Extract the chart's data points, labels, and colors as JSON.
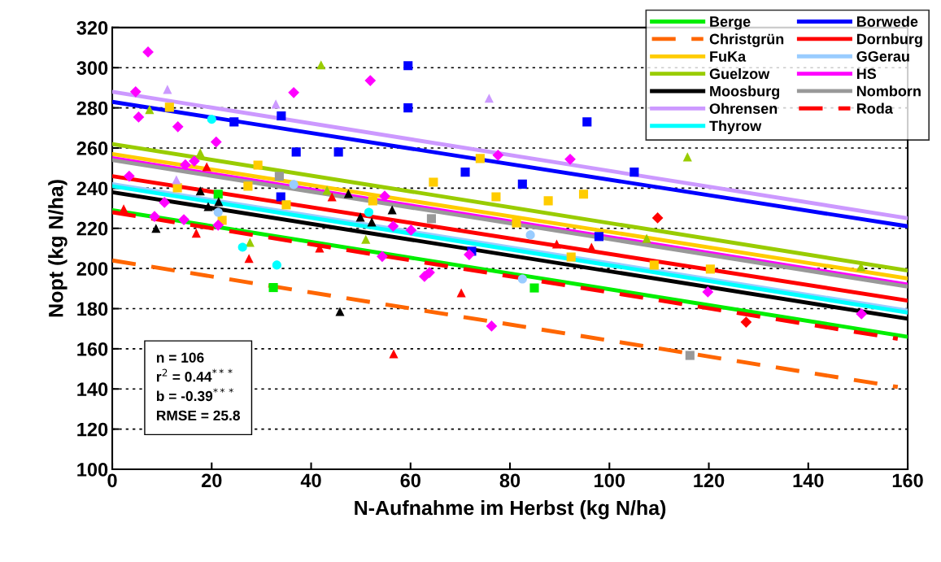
{
  "chart_data": {
    "type": "scatter",
    "xlabel": "N-Aufnahme im Herbst (kg N/ha)",
    "ylabel": "Nopt (kg N/ha)",
    "xlim": [
      0,
      160
    ],
    "xticks": [
      0,
      20,
      40,
      60,
      80,
      100,
      120,
      140,
      160
    ],
    "ylim": [
      100,
      320
    ],
    "yticks": [
      100,
      120,
      140,
      160,
      180,
      200,
      220,
      240,
      260,
      280,
      300,
      320
    ],
    "grid": "y",
    "legend": "top right",
    "annotations": [
      "n = 106",
      "r$^{2}$ = 0.44$^{***}$",
      "b = -0.39$^{***}$",
      "RMSE = 25.8"
    ],
    "series": [
      {
        "color": "#00ee00",
        "marker": "square",
        "x": [
          21.3,
          32.4,
          84.9
        ],
        "values": [
          237,
          190.5,
          190.3
        ]
      },
      {
        "color": "#0000ff",
        "marker": "square",
        "x": [
          24.5,
          33.9,
          34,
          37,
          45.5,
          59.5,
          59.5,
          71,
          72.3,
          82.5,
          95.5,
          97.9,
          105
        ],
        "values": [
          273,
          235.7,
          276,
          258,
          258,
          301,
          280,
          248,
          208.6,
          242,
          273,
          215.9,
          248
        ]
      },
      {
        "color": "#ffcc00",
        "marker": "square",
        "x": [
          11.5,
          13.1,
          22.1,
          27.3,
          29.3,
          35,
          52.4,
          64.6,
          74,
          77.2,
          81.3,
          87.7,
          92.3,
          94.8,
          109,
          120.3
        ],
        "values": [
          280.3,
          240.2,
          224,
          241,
          251.5,
          231.7,
          233.7,
          243,
          254.8,
          235.7,
          222.7,
          233.7,
          205.7,
          237,
          201.7,
          199.7
        ]
      },
      {
        "color": "#99ccff",
        "marker": "circle",
        "x": [
          21.3,
          36.5,
          82.5,
          84.1
        ],
        "values": [
          228,
          241.8,
          194.8,
          216.7
        ]
      },
      {
        "color": "#99cc00",
        "marker": "triangle",
        "x": [
          7.5,
          17.7,
          26.2,
          27.7,
          42,
          43.2,
          51,
          107.5,
          115.7,
          150.6
        ],
        "values": [
          279.2,
          257.6,
          null,
          213,
          301.4,
          239,
          214.5,
          215,
          255.6,
          200.9
        ]
      },
      {
        "color": "#ff00ff",
        "marker": "diamond",
        "x": [
          3.4,
          4.7,
          5.3,
          7.2,
          8.5,
          10.5,
          13.2,
          14.4,
          14.7,
          16.5,
          20.9,
          21.3,
          36.5,
          51.9,
          54.3,
          54.8,
          56.5,
          60.1,
          62.8,
          63.8,
          71.8,
          76.3,
          77.6,
          92.1,
          119.8,
          150.7
        ],
        "values": [
          246,
          288,
          275.4,
          307.8,
          225.9,
          232.9,
          270.6,
          224.3,
          251.6,
          253.5,
          263,
          221.6,
          287.6,
          293.6,
          206,
          236,
          221.1,
          219.1,
          196,
          198,
          206.9,
          171.3,
          256.4,
          254.4,
          188.3,
          177.4
        ]
      },
      {
        "color": "#ff0000",
        "marker": "triangle",
        "x": [
          2.3,
          16.9,
          19,
          27.5,
          41.7,
          44.2,
          56.6,
          70.2,
          89.4,
          96.4
        ],
        "values": [
          229.7,
          217.6,
          250.7,
          205,
          210.2,
          235.7,
          157.5,
          187.9,
          212.2,
          210.6
        ]
      },
      {
        "color": "#ff0000",
        "marker": "diamond",
        "x": [
          109.7,
          127.5
        ],
        "values": [
          225.2,
          173.3
        ]
      },
      {
        "color": "#000000",
        "marker": "triangle",
        "x": [
          8.8,
          17.7,
          19.3,
          21.4,
          45.8,
          47.5,
          49.9,
          52.2,
          56.3
        ],
        "values": [
          220,
          238.6,
          230.9,
          233.3,
          178.6,
          237.3,
          225.6,
          223.2,
          229.2
        ]
      },
      {
        "color": "#999999",
        "marker": "square",
        "x": [
          33.6,
          64.2,
          116.2
        ],
        "values": [
          245.9,
          224.8,
          156.7
        ]
      },
      {
        "color": "#cc99ff",
        "marker": "triangle",
        "x": [
          11.1,
          12.9,
          32.9,
          75.8
        ],
        "values": [
          289.2,
          244.2,
          281.9,
          284.8
        ]
      },
      {
        "color": "#00ffff",
        "marker": "circle",
        "x": [
          20,
          26.2,
          33.1,
          51.6
        ],
        "values": [
          274.3,
          210.6,
          201.7,
          228
        ]
      },
      {
        "type": "line",
        "name": "Berge",
        "color": "#00ee00",
        "line_style": "solid",
        "x": [
          0,
          160
        ],
        "values": [
          229,
          166
        ]
      },
      {
        "type": "line",
        "name": "Borwede",
        "color": "#0000ff",
        "line_style": "solid",
        "x": [
          0,
          160
        ],
        "values": [
          283,
          221
        ]
      },
      {
        "type": "line",
        "name": "Christgrün",
        "color": "#ff6600",
        "line_style": "dashed",
        "x": [
          0,
          158
        ],
        "values": [
          204,
          141
        ]
      },
      {
        "type": "line",
        "name": "Dornburg",
        "color": "#ff0000",
        "line_style": "solid",
        "x": [
          0,
          160
        ],
        "values": [
          246,
          184
        ]
      },
      {
        "type": "line",
        "name": "FuKa",
        "color": "#ffcc00",
        "line_style": "solid",
        "x": [
          0,
          160
        ],
        "values": [
          257,
          195
        ]
      },
      {
        "type": "line",
        "name": "GGerau",
        "color": "#99ccff",
        "line_style": "solid",
        "x": [
          0,
          160
        ],
        "values": [
          242,
          179
        ]
      },
      {
        "type": "line",
        "name": "Guelzow",
        "color": "#99cc00",
        "line_style": "solid",
        "x": [
          0,
          160
        ],
        "values": [
          262,
          199
        ]
      },
      {
        "type": "line",
        "name": "HS",
        "color": "#ff00ff",
        "line_style": "solid",
        "x": [
          0,
          160
        ],
        "values": [
          255,
          192
        ]
      },
      {
        "type": "line",
        "name": "Moosburg",
        "color": "#000000",
        "line_style": "solid",
        "x": [
          0,
          160
        ],
        "values": [
          238,
          175
        ]
      },
      {
        "type": "line",
        "name": "Nomborn",
        "color": "#999999",
        "line_style": "solid",
        "x": [
          0,
          160
        ],
        "values": [
          254,
          191
        ]
      },
      {
        "type": "line",
        "name": "Ohrensen",
        "color": "#cc99ff",
        "line_style": "solid",
        "x": [
          0,
          160
        ],
        "values": [
          288,
          225
        ]
      },
      {
        "type": "line",
        "name": "Roda",
        "color": "#ff0000",
        "line_style": "dashed",
        "x": [
          0,
          158
        ],
        "values": [
          228,
          165
        ]
      },
      {
        "type": "line",
        "name": "Thyrow",
        "color": "#00ffff",
        "line_style": "solid",
        "x": [
          0,
          160
        ],
        "values": [
          241,
          178
        ]
      }
    ]
  }
}
